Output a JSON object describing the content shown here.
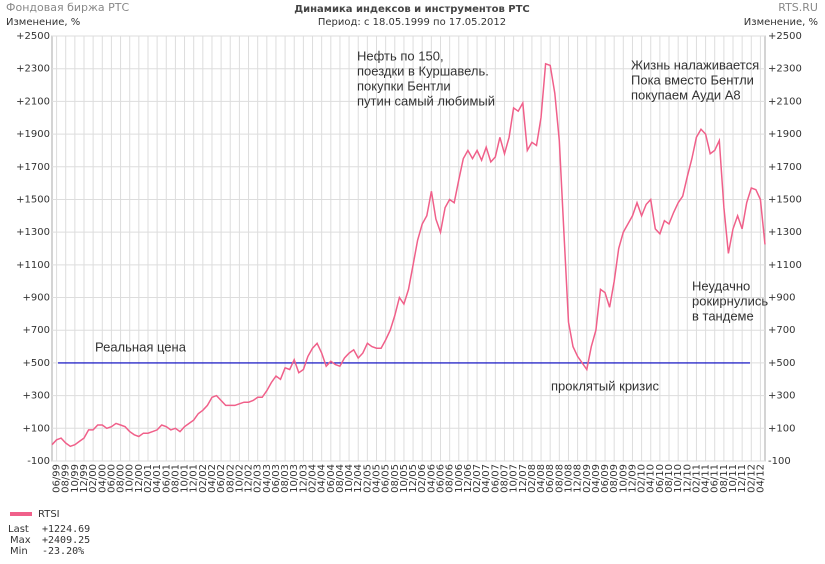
{
  "header": {
    "site": "Фондовая биржа РТС",
    "brand": "RTS.RU",
    "unit": "Изменение, %"
  },
  "chart_data": {
    "type": "line",
    "title": "Динамика индексов и инструментов РТС",
    "subtitle": "Период: с 18.05.1999 по 17.05.2012",
    "categories": [
      null,
      "06/99",
      null,
      "08/99",
      null,
      "10/99",
      null,
      "12/99",
      null,
      "02/00",
      null,
      "04/00",
      null,
      "06/00",
      null,
      "08/00",
      null,
      "10/00",
      null,
      "12/00",
      null,
      "02/01",
      null,
      "04/01",
      null,
      "06/01",
      null,
      "08/01",
      null,
      "10/01",
      null,
      "12/01",
      null,
      "02/02",
      null,
      "04/02",
      null,
      "06/02",
      null,
      "08/02",
      null,
      "10/02",
      null,
      "12/02",
      null,
      "02/03",
      null,
      "04/03",
      null,
      "06/03",
      null,
      "08/03",
      null,
      "10/03",
      null,
      "12/03",
      null,
      "02/04",
      null,
      "04/04",
      null,
      "06/04",
      null,
      "08/04",
      null,
      "10/04",
      null,
      "12/04",
      null,
      "02/05",
      null,
      "04/05",
      null,
      "06/05",
      null,
      "08/05",
      null,
      "10/05",
      null,
      "12/05",
      null,
      "02/06",
      null,
      "04/06",
      null,
      "06/06",
      null,
      "08/06",
      null,
      "10/06",
      null,
      "12/06",
      null,
      "02/07",
      null,
      "04/07",
      null,
      "06/07",
      null,
      "08/07",
      null,
      "10/07",
      null,
      "12/07",
      null,
      "02/08",
      null,
      "04/08",
      null,
      "06/08",
      null,
      "08/08",
      null,
      "10/08",
      null,
      "12/08",
      null,
      "02/09",
      null,
      "04/09",
      null,
      "06/09",
      null,
      "08/09",
      null,
      "10/09",
      null,
      "12/09",
      null,
      "02/10",
      null,
      "04/10",
      null,
      "06/10",
      null,
      "08/10",
      null,
      "10/10",
      null,
      "12/10",
      null,
      "02/11",
      null,
      "04/11",
      null,
      "06/11",
      null,
      "08/11",
      null,
      "10/11",
      null,
      "12/11",
      null,
      "02/12",
      null,
      "04/12",
      null
    ],
    "series": [
      {
        "name": "RTSI",
        "color": "#f0608a",
        "values": [
          0,
          30,
          40,
          10,
          -10,
          0,
          20,
          40,
          90,
          90,
          120,
          120,
          100,
          110,
          130,
          120,
          110,
          80,
          60,
          50,
          70,
          70,
          80,
          90,
          120,
          110,
          90,
          100,
          80,
          110,
          130,
          150,
          190,
          210,
          240,
          290,
          300,
          270,
          240,
          240,
          240,
          250,
          260,
          260,
          270,
          290,
          290,
          330,
          380,
          420,
          400,
          470,
          460,
          520,
          440,
          460,
          540,
          590,
          620,
          560,
          480,
          510,
          490,
          480,
          530,
          560,
          580,
          530,
          560,
          620,
          600,
          590,
          590,
          640,
          700,
          790,
          900,
          860,
          950,
          1100,
          1250,
          1350,
          1400,
          1550,
          1380,
          1300,
          1450,
          1500,
          1480,
          1620,
          1750,
          1800,
          1750,
          1800,
          1740,
          1820,
          1730,
          1760,
          1880,
          1780,
          1880,
          2060,
          2040,
          2090,
          1800,
          1850,
          1830,
          2000,
          2330,
          2320,
          2150,
          1860,
          1300,
          750,
          600,
          540,
          500,
          460,
          600,
          700,
          950,
          930,
          840,
          1000,
          1200,
          1300,
          1350,
          1400,
          1480,
          1400,
          1470,
          1500,
          1320,
          1290,
          1370,
          1350,
          1420,
          1480,
          1520,
          1640,
          1750,
          1880,
          1930,
          1900,
          1780,
          1800,
          1860,
          1450,
          1170,
          1320,
          1400,
          1320,
          1480,
          1570,
          1560,
          1500,
          1225
        ]
      }
    ],
    "ylim": [
      -100,
      2500
    ],
    "yticks": [
      -100,
      {
        "value": 100,
        "label": "+100"
      },
      {
        "value": 300,
        "label": "+300"
      },
      {
        "value": 500,
        "label": "+500"
      },
      {
        "value": 700,
        "label": "+700"
      },
      {
        "value": 900,
        "label": "+900"
      },
      {
        "value": 1100,
        "label": "+1100"
      },
      {
        "value": 1300,
        "label": "+1300"
      },
      {
        "value": 1500,
        "label": "+1500"
      },
      {
        "value": 1700,
        "label": "+1700"
      },
      {
        "value": 1900,
        "label": "+1900"
      },
      {
        "value": 2100,
        "label": "+2100"
      },
      {
        "value": 2300,
        "label": "+2300"
      },
      {
        "value": 2500,
        "label": "+2500"
      }
    ],
    "grid": true,
    "reference_line": {
      "value": 500,
      "color": "#0000c0",
      "label": "Реальная цена"
    },
    "annotations": [
      {
        "lines": [
          "Нефть по 150,",
          "поездки в Куршавель.",
          "покупки Бентли",
          "путин самый любимый"
        ],
        "color": "#e020e0"
      },
      {
        "lines": [
          "Жизнь налаживается",
          "Пока вместо Бентли",
          "покупаем Ауди А8"
        ],
        "color": "#e020e0"
      },
      {
        "lines": [
          "Неудачно",
          "рокирнулись",
          "в тандеме"
        ],
        "color": "#0000c0"
      },
      {
        "lines": [
          "проклятый кризис"
        ],
        "color": "#0000c0"
      }
    ],
    "stats": [
      {
        "label": "Last",
        "value": "+1224.69"
      },
      {
        "label": "Max",
        "value": "+2409.25"
      },
      {
        "label": "Min",
        "value": "-23.20%"
      }
    ]
  }
}
